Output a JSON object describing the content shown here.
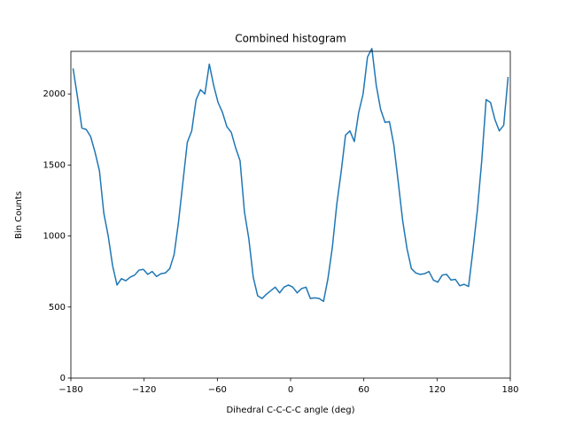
{
  "chart_data": {
    "type": "line",
    "title": "Combined histogram",
    "x_label": "Dihedral C-C-C-C angle (deg)",
    "y_label": "Bin Counts",
    "x": [
      -178.2,
      -174.6,
      -171,
      -167.4,
      -163.8,
      -160.2,
      -156.6,
      -153,
      -149.4,
      -145.8,
      -142.2,
      -138.6,
      -135,
      -131.4,
      -127.8,
      -124.2,
      -120.6,
      -117,
      -113.4,
      -109.8,
      -106.2,
      -102.6,
      -99,
      -95.4,
      -91.8,
      -88.2,
      -84.6,
      -81,
      -77.4,
      -73.8,
      -70.2,
      -66.6,
      -63,
      -59.4,
      -55.8,
      -52.2,
      -48.6,
      -45,
      -41.4,
      -37.8,
      -34.2,
      -30.6,
      -27,
      -23.4,
      -19.8,
      -16.2,
      -12.6,
      -9,
      -5.4,
      -1.8,
      1.8,
      5.4,
      9,
      12.6,
      16.2,
      19.8,
      23.4,
      27,
      30.6,
      34.2,
      37.8,
      41.4,
      45,
      48.6,
      52.2,
      55.8,
      59.4,
      63,
      66.6,
      70.2,
      73.8,
      77.4,
      81,
      84.6,
      88.2,
      91.8,
      95.4,
      99,
      102.6,
      106.2,
      109.8,
      113.4,
      117,
      120.6,
      124.2,
      127.8,
      131.4,
      135,
      138.6,
      142.2,
      145.8,
      149.4,
      153,
      156.6,
      160.2,
      163.8,
      167.4,
      171,
      174.6,
      178.2
    ],
    "values": [
      2180,
      1980,
      1760,
      1750,
      1700,
      1590,
      1460,
      1160,
      1000,
      790,
      655,
      700,
      685,
      710,
      725,
      760,
      765,
      730,
      750,
      715,
      735,
      740,
      770,
      870,
      1100,
      1380,
      1660,
      1740,
      1960,
      2030,
      2000,
      2210,
      2060,
      1940,
      1870,
      1770,
      1730,
      1620,
      1530,
      1170,
      980,
      710,
      580,
      560,
      590,
      615,
      640,
      600,
      640,
      655,
      640,
      600,
      630,
      640,
      560,
      565,
      560,
      540,
      700,
      920,
      1220,
      1450,
      1710,
      1740,
      1665,
      1870,
      2000,
      2260,
      2320,
      2060,
      1890,
      1800,
      1805,
      1640,
      1380,
      1110,
      910,
      770,
      740,
      730,
      735,
      750,
      690,
      675,
      725,
      730,
      690,
      695,
      650,
      660,
      645,
      900,
      1180,
      1530,
      1960,
      1940,
      1820,
      1740,
      1780,
      2120
    ],
    "color": "#1f77b4",
    "xlim": [
      -180,
      180
    ],
    "xticks": [
      {
        "value": -180,
        "label": "−180"
      },
      {
        "value": -120,
        "label": "−120"
      },
      {
        "value": -60,
        "label": "−60"
      },
      0,
      60,
      120,
      180
    ],
    "ylim": [
      0,
      2300
    ],
    "yticks": [
      0,
      500,
      1000,
      1500,
      2000
    ]
  }
}
